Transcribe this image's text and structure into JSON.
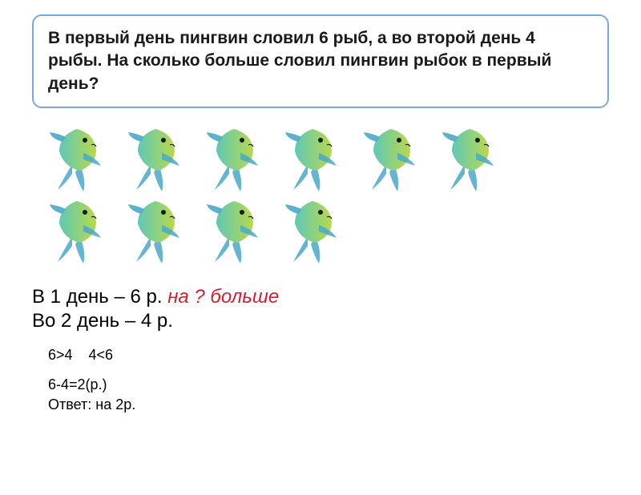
{
  "problem": {
    "text": "В первый день пингвин словил 6 рыб, а во второй день 4 рыбы. На сколько больше словил пингвин рыбок в первый день?",
    "border_color": "#7aa8d8",
    "text_color": "#1a1a1a",
    "fontsize": 21
  },
  "fish": {
    "rows": [
      6,
      4
    ],
    "body_color_left": "#5fc8b8",
    "body_color_right": "#b8d94a",
    "fin_color": "#4aa8c8",
    "eye_color": "#1a1a1a",
    "width": 74,
    "height": 82
  },
  "summary": {
    "line1_black": "В 1 день – 6 р. ",
    "line1_red": "на ? больше",
    "line2": "Во 2 день – 4 р.",
    "text_color": "#1a1a1a",
    "red_color": "#d02030",
    "fontsize": 24
  },
  "compare": {
    "text": "6>4    4<6",
    "fontsize": 18,
    "color": "#1a1a1a"
  },
  "solution": {
    "calc": "6-4=2(р.)",
    "answer": "Ответ: на 2р.",
    "fontsize": 18,
    "color": "#1a1a1a"
  }
}
